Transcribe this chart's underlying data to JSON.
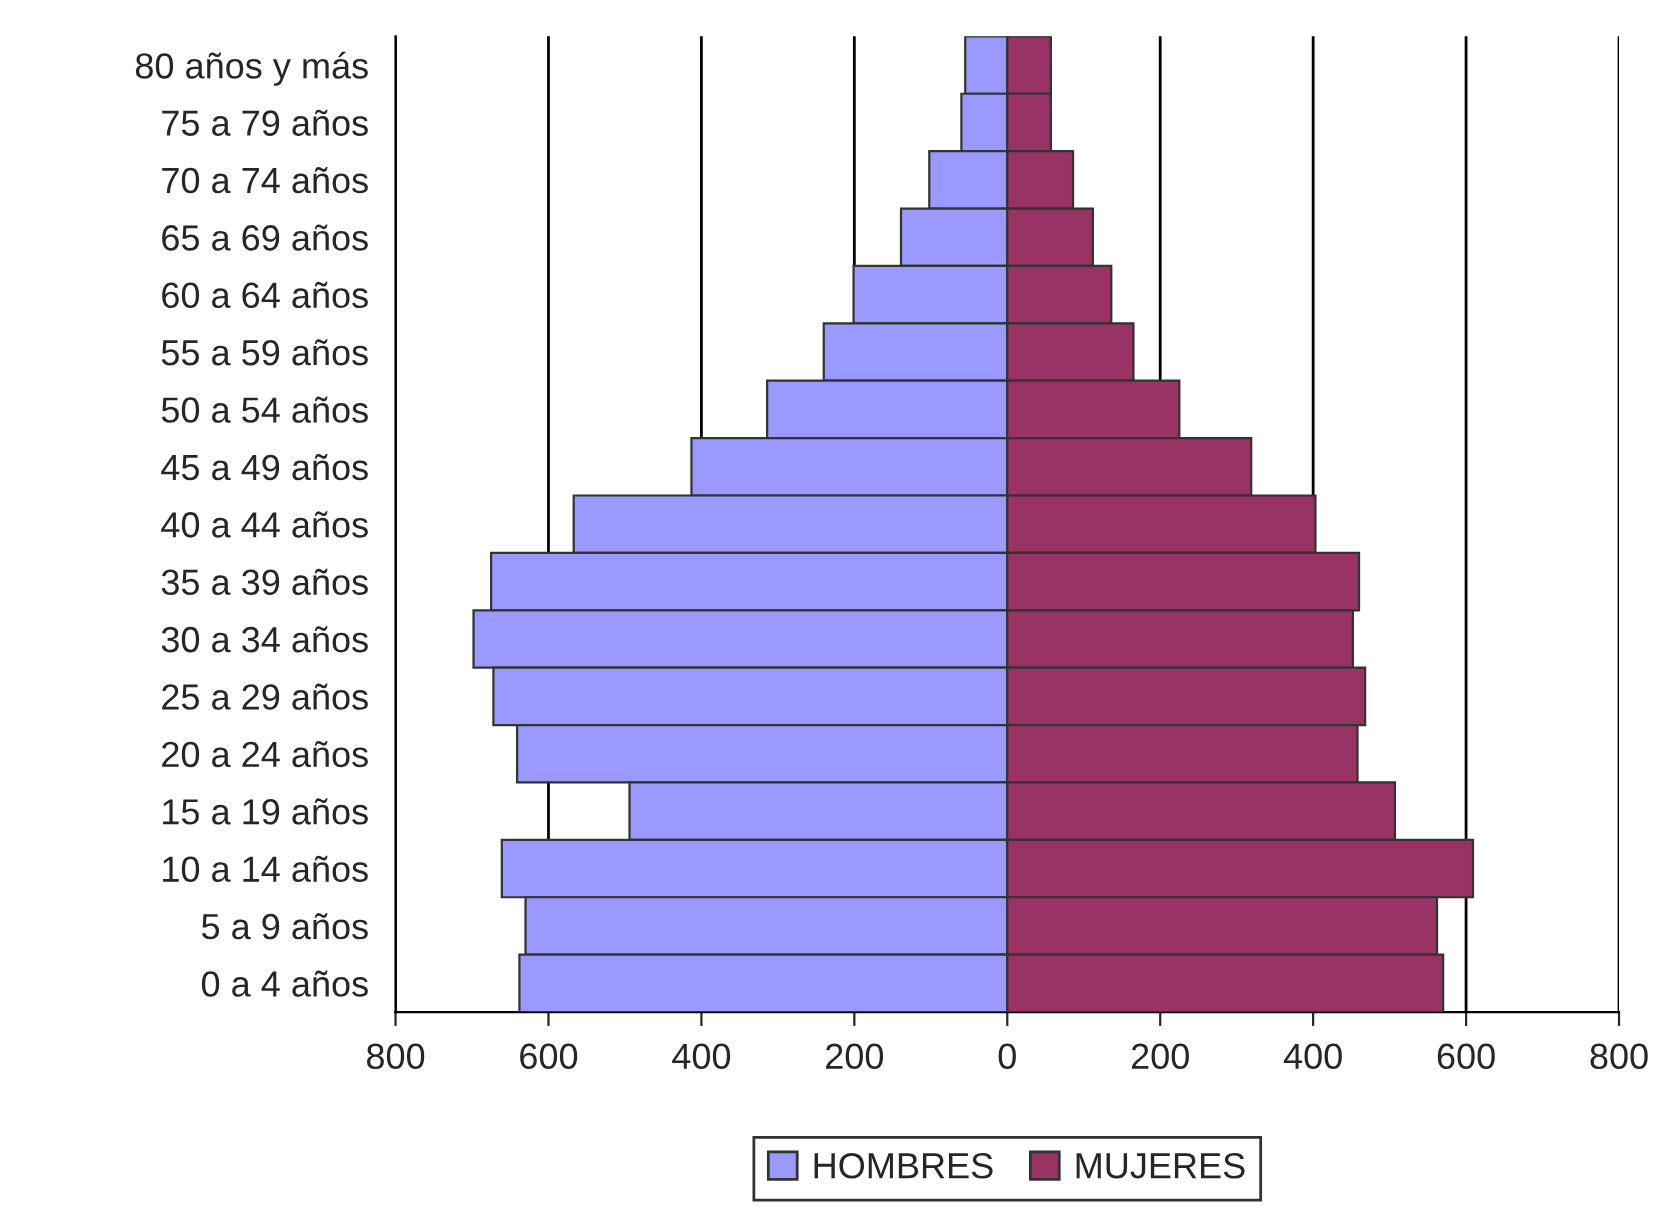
{
  "chart_data": {
    "type": "bar",
    "orientation": "horizontal",
    "categories": [
      "80 años y más",
      "75 a 79 años",
      "70 a 74 años",
      "65 a 69 años",
      "60 a 64 años",
      "55 a 59 años",
      "50 a 54 años",
      "45 a 49 años",
      "40 a 44 años",
      "35 a 39 años",
      "30 a 34 años",
      "25 a 29 años",
      "20 a 24 años",
      "15 a 19 años",
      "10 a 14 años",
      "5 a 9 años",
      "0 a 4 años"
    ],
    "series": [
      {
        "name": "HOMBRES",
        "color": "#9999ff",
        "values": [
          -55,
          -60,
          -102,
          -139,
          -201,
          -240,
          -314,
          -413,
          -567,
          -675,
          -698,
          -672,
          -641,
          -494,
          -661,
          -630,
          -638
        ]
      },
      {
        "name": "MUJERES",
        "color": "#993366",
        "values": [
          57,
          57,
          86,
          112,
          136,
          165,
          225,
          319,
          403,
          460,
          452,
          468,
          458,
          507,
          609,
          562,
          570
        ]
      }
    ],
    "xlim": [
      -800,
      800
    ],
    "xticks": [
      {
        "value": -800,
        "label": "800"
      },
      {
        "value": -600,
        "label": "600"
      },
      {
        "value": -400,
        "label": "400"
      },
      {
        "value": -200,
        "label": "200"
      },
      0,
      200,
      400,
      600,
      800
    ],
    "grid": "x",
    "legend": "bottom",
    "stacked": true
  }
}
